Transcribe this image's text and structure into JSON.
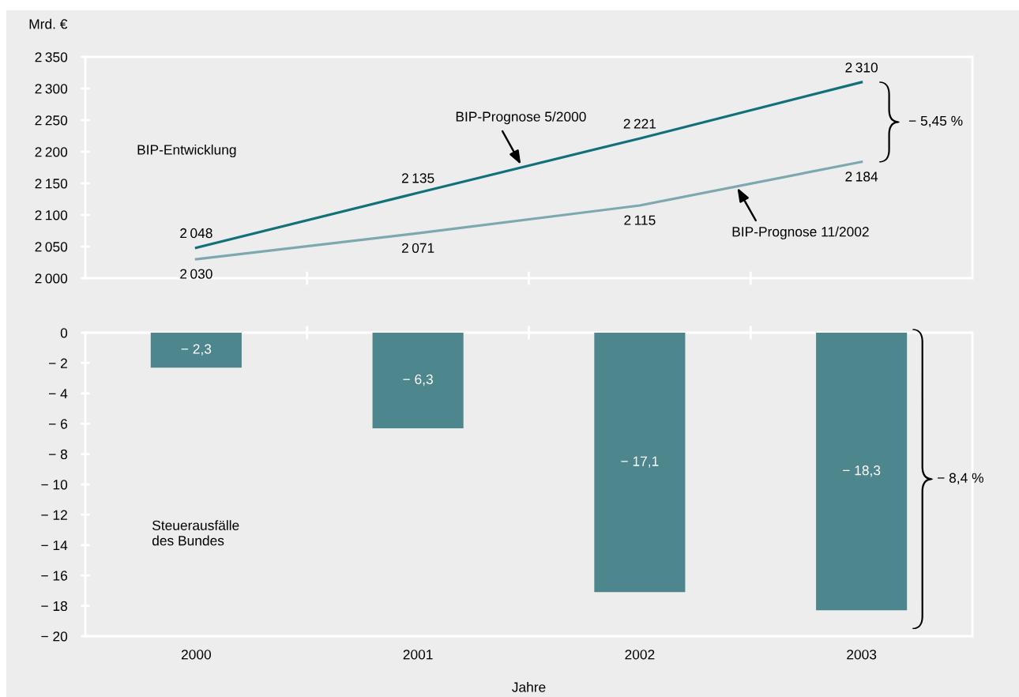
{
  "chart_data": [
    {
      "type": "line",
      "categories": [
        "2000",
        "2001",
        "2002",
        "2003"
      ],
      "ylabel": "Mrd. €",
      "annotations": [
        "BIP-Entwicklung",
        "− 5,45 %"
      ],
      "series": [
        {
          "name": "BIP-Prognose 5/2000",
          "color": "#12707a",
          "values": [
            2048,
            2135,
            2221,
            2310
          ],
          "value_labels": [
            "2 048",
            "2 135",
            "2 221",
            "2 310"
          ]
        },
        {
          "name": "BIP-Prognose 11/2002",
          "color": "#7ea8b0",
          "values": [
            2030,
            2071,
            2115,
            2184
          ],
          "value_labels": [
            "2 030",
            "2 071",
            "2 115",
            "2 184"
          ]
        }
      ],
      "ylim": [
        2000,
        2350
      ],
      "yticks": [
        {
          "value": 2000,
          "label": "2 000"
        },
        {
          "value": 2050,
          "label": "2 050"
        },
        {
          "value": 2100,
          "label": "2 100"
        },
        {
          "value": 2150,
          "label": "2 150"
        },
        {
          "value": 2200,
          "label": "2 200"
        },
        {
          "value": 2250,
          "label": "2 250"
        },
        {
          "value": 2300,
          "label": "2 300"
        },
        {
          "value": 2350,
          "label": "2 350"
        }
      ],
      "tick_labels": "y"
    },
    {
      "type": "bar",
      "categories": [
        "2000",
        "2001",
        "2002",
        "2003"
      ],
      "xlabel": "Jahre",
      "annotations": [
        "Steuerausfälle\ndes Bundes",
        "− 8,4 %"
      ],
      "values": [
        -2.3,
        -6.3,
        -17.1,
        -18.3
      ],
      "color": "#4e868e",
      "value_labels": [
        "− 2,3",
        "− 6,3",
        "− 17,1",
        "− 18,3"
      ],
      "ylim": [
        -20,
        0
      ],
      "yticks": [
        {
          "value": -20,
          "label": "− 20"
        },
        {
          "value": -18,
          "label": "− 18"
        },
        {
          "value": -16,
          "label": "− 16"
        },
        {
          "value": -14,
          "label": "− 14"
        },
        {
          "value": -12,
          "label": "− 12"
        },
        {
          "value": -10,
          "label": "− 10"
        },
        {
          "value": -8,
          "label": "− 8"
        },
        {
          "value": -6,
          "label": "− 6"
        },
        {
          "value": -4,
          "label": "− 4"
        },
        {
          "value": -2,
          "label": "− 2"
        },
        0
      ]
    }
  ]
}
